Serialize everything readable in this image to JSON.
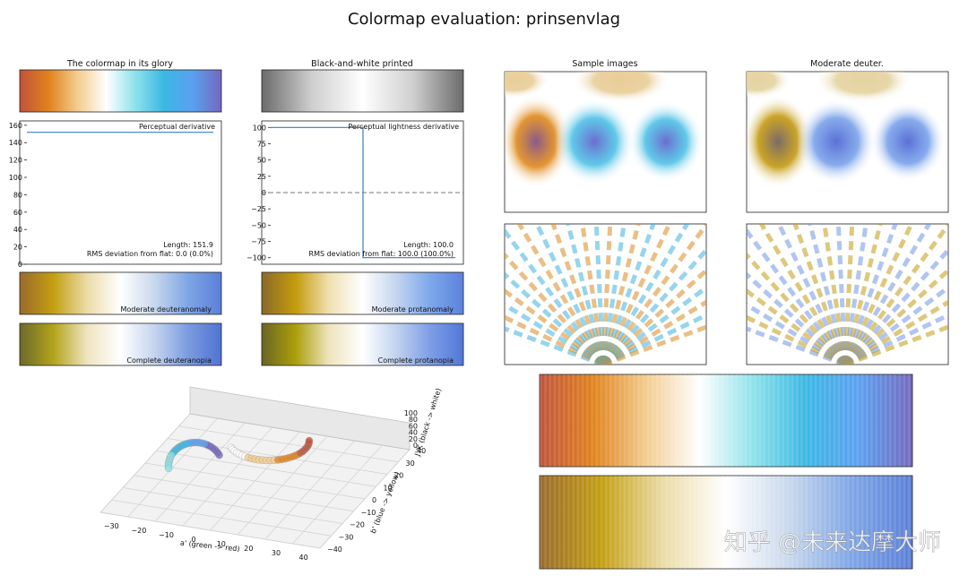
{
  "title": "Colormap evaluation: prinsenvlag",
  "watermark": "知乎 @未来达摩大师",
  "colormap": {
    "glory": [
      "#c0533b",
      "#e0821c",
      "#f3cc8e",
      "#ffffff",
      "#8fe3ea",
      "#3bb8e4",
      "#5aa0f0",
      "#7468bf"
    ],
    "bw": [
      "#6b6b6b",
      "#cfcfcf",
      "#ffffff",
      "#cfcfcf",
      "#6b6b6b"
    ],
    "deuteranomaly": [
      "#9a6a2c",
      "#c39f10",
      "#ecdca8",
      "#ffffff",
      "#c9d8ec",
      "#7fa6e6",
      "#5b7fd8"
    ],
    "protanomaly": [
      "#8a6a2a",
      "#c49b0c",
      "#f0e0b0",
      "#ffffff",
      "#c4d5ee",
      "#7ea8ec",
      "#5c82dc"
    ],
    "deuteranopia": [
      "#6b6a2c",
      "#b3a31b",
      "#efe4c0",
      "#ffffff",
      "#c6d4ee",
      "#7c9ce0",
      "#4f73d2"
    ],
    "protanopia": [
      "#6a6524",
      "#ab9e0a",
      "#efe4be",
      "#ffffff",
      "#c2d3ef",
      "#7f9ee6",
      "#5178d8"
    ]
  },
  "panels": {
    "glory_title": "The colormap in its glory",
    "bw_title": "Black-and-white printed",
    "sample_title": "Sample images",
    "deuter_title": "Moderate deuter.",
    "deuteranomaly_label": "Moderate deuteranomaly",
    "protanomaly_label": "Moderate protanomaly",
    "deuteranopia_label": "Complete deuteranopia",
    "protanopia_label": "Complete protanopia"
  },
  "chart_data": [
    {
      "type": "line",
      "title": "Perceptual derivative",
      "series": [
        {
          "x": [
            0,
            1
          ],
          "y": [
            151.9,
            151.9
          ]
        }
      ],
      "ylim": [
        0,
        165
      ],
      "yticks": [
        "0",
        "20",
        "40",
        "60",
        "80",
        "100",
        "120",
        "140",
        "160"
      ],
      "annotations": [
        "Length: 151.9",
        "RMS deviation from flat: 0.0 (0.0%)"
      ]
    },
    {
      "type": "line",
      "title": "Perceptual lightness derivative",
      "series": [
        {
          "x": [
            0,
            0.5,
            0.5,
            1
          ],
          "y": [
            100,
            100,
            -100,
            -100
          ]
        }
      ],
      "ylim": [
        -110,
        110
      ],
      "yticks": [
        "−100",
        "−75",
        "−50",
        "−25",
        "0",
        "25",
        "50",
        "75",
        "100"
      ],
      "annotations": [
        "Length: 100.0",
        "RMS deviation from flat: 100.0 (100.0%)"
      ]
    },
    {
      "type": "scatter",
      "subtype": "3d",
      "xlabel": "a' (green -> red)",
      "ylabel": "b' (blue -> yellow)",
      "zlabel": "J'/K (black -> white)",
      "xticks": [
        "−30",
        "−20",
        "−10",
        "0",
        "10",
        "20",
        "30",
        "40"
      ],
      "yticks": [
        "−40",
        "−30",
        "−20",
        "−10",
        "0",
        "10",
        "20",
        "30",
        "40"
      ],
      "zticks": [
        "0",
        "20",
        "40",
        "60",
        "80",
        "100"
      ]
    }
  ]
}
